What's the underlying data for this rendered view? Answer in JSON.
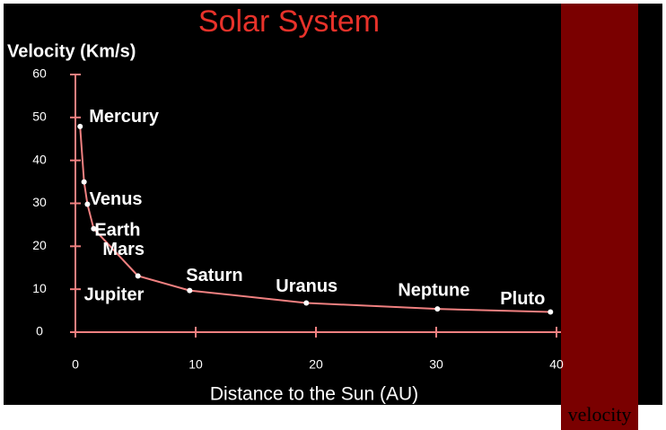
{
  "chart_data": {
    "type": "line",
    "title": "Solar System",
    "y_label": "Velocity (Km/s)",
    "x_label": "Distance to the Sun (AU)",
    "categories": [
      "Mercury",
      "Venus",
      "Earth",
      "Mars",
      "Jupiter",
      "Saturn",
      "Uranus",
      "Neptune",
      "Pluto"
    ],
    "x": [
      0.39,
      0.72,
      1,
      1.52,
      5.2,
      9.5,
      19.2,
      30.1,
      39.5
    ],
    "values": [
      47.9,
      35,
      29.8,
      24.1,
      13.1,
      9.7,
      6.8,
      5.4,
      4.7
    ],
    "color": "#f08080",
    "xlim": [
      0,
      40
    ],
    "xticks": [
      0,
      10,
      20,
      30,
      40
    ],
    "ylim": [
      0,
      60
    ],
    "yticks": [
      0,
      10,
      20,
      30,
      40,
      50,
      60
    ]
  },
  "sidebar": {
    "text": "velocity"
  }
}
